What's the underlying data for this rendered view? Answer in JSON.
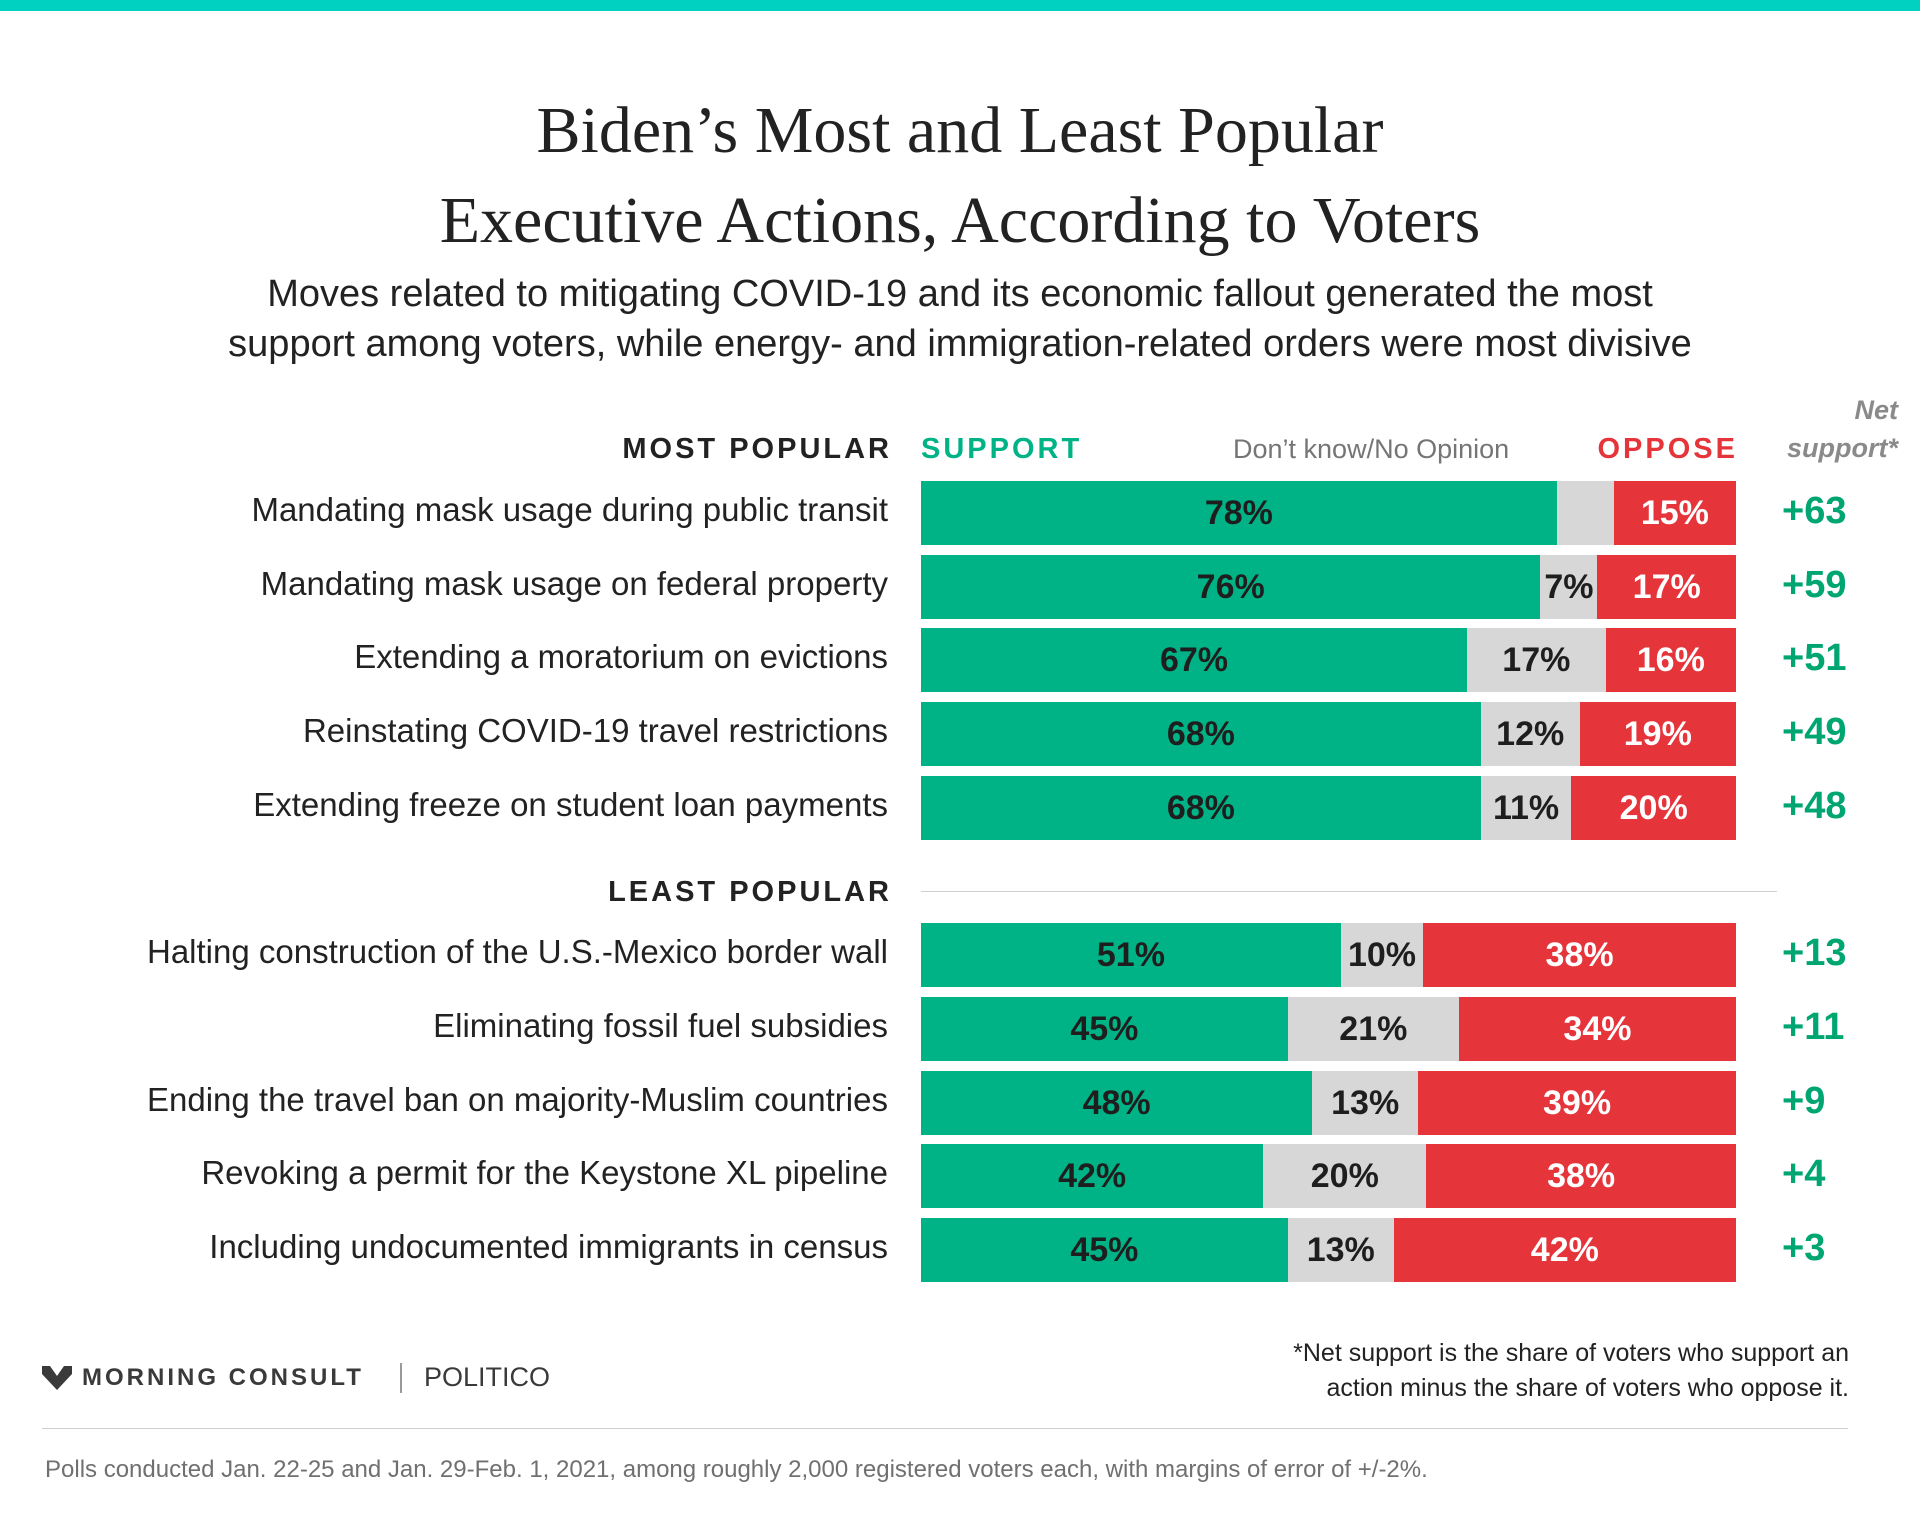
{
  "colors": {
    "accent_bar": "#00d1c1",
    "support": "#00b386",
    "dont_know": "#d7d7d7",
    "oppose": "#e5343a",
    "net": "#00a672"
  },
  "title": {
    "line1": "Biden’s Most and Least Popular",
    "line2": "Executive Actions, According to Voters"
  },
  "subtitle": {
    "line1": "Moves related to mitigating COVID-19 and its economic fallout generated the most",
    "line2": "support among voters, while energy- and immigration-related orders were most divisive"
  },
  "headers": {
    "support": "SUPPORT",
    "dont_know": "Don’t know/No Opinion",
    "oppose": "OPPOSE",
    "net_line1": "Net",
    "net_line2": "support*"
  },
  "chart_data": {
    "type": "bar",
    "orientation": "horizontal",
    "stacked": true,
    "unit": "%",
    "groups": [
      {
        "label": "MOST POPULAR",
        "rows": [
          {
            "label": "Mandating mask usage during public transit",
            "support": 78,
            "dont_know": 7,
            "oppose": 15,
            "support_text": "78%",
            "dont_know_text": "",
            "oppose_text": "15%",
            "net_text": "+63"
          },
          {
            "label": "Mandating mask usage on federal property",
            "support": 76,
            "dont_know": 7,
            "oppose": 17,
            "support_text": "76%",
            "dont_know_text": "7%",
            "oppose_text": "17%",
            "net_text": "+59"
          },
          {
            "label": "Extending a moratorium on evictions",
            "support": 67,
            "dont_know": 17,
            "oppose": 16,
            "support_text": "67%",
            "dont_know_text": "17%",
            "oppose_text": "16%",
            "net_text": "+51"
          },
          {
            "label": "Reinstating COVID-19 travel restrictions",
            "support": 68,
            "dont_know": 12,
            "oppose": 19,
            "support_text": "68%",
            "dont_know_text": "12%",
            "oppose_text": "19%",
            "net_text": "+49"
          },
          {
            "label": "Extending freeze on student loan payments",
            "support": 68,
            "dont_know": 11,
            "oppose": 20,
            "support_text": "68%",
            "dont_know_text": "11%",
            "oppose_text": "20%",
            "net_text": "+48"
          }
        ]
      },
      {
        "label": "LEAST POPULAR",
        "rows": [
          {
            "label": "Halting construction of the U.S.-Mexico border wall",
            "support": 51,
            "dont_know": 10,
            "oppose": 38,
            "support_text": "51%",
            "dont_know_text": "10%",
            "oppose_text": "38%",
            "net_text": "+13"
          },
          {
            "label": "Eliminating fossil fuel subsidies",
            "support": 45,
            "dont_know": 21,
            "oppose": 34,
            "support_text": "45%",
            "dont_know_text": "21%",
            "oppose_text": "34%",
            "net_text": "+11"
          },
          {
            "label": "Ending the travel ban on majority-Muslim countries",
            "support": 48,
            "dont_know": 13,
            "oppose": 39,
            "support_text": "48%",
            "dont_know_text": "13%",
            "oppose_text": "39%",
            "net_text": "+9"
          },
          {
            "label": "Revoking a permit for the Keystone XL pipeline",
            "support": 42,
            "dont_know": 20,
            "oppose": 38,
            "support_text": "42%",
            "dont_know_text": "20%",
            "oppose_text": "38%",
            "net_text": "+4"
          },
          {
            "label": "Including undocumented immigrants in census",
            "support": 45,
            "dont_know": 13,
            "oppose": 42,
            "support_text": "45%",
            "dont_know_text": "13%",
            "oppose_text": "42%",
            "net_text": "+3"
          }
        ]
      }
    ]
  },
  "footnote": {
    "line1": "*Net support is the share of voters who support an",
    "line2": "action minus the share of voters who oppose it."
  },
  "branding": {
    "morning_consult": "MORNING CONSULT",
    "politico": "POLITICO",
    "logo_icon": "morning-consult-logo-icon"
  },
  "source": "Polls conducted Jan. 22-25 and Jan. 29-Feb. 1, 2021, among roughly 2,000 registered voters each, with margins of error of +/-2%."
}
